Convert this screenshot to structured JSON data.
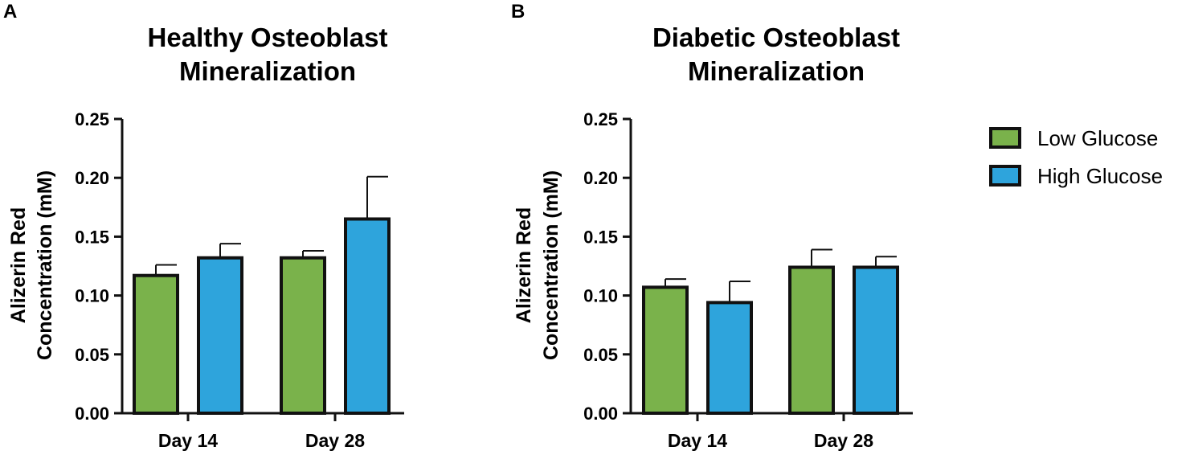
{
  "chart_data": [
    {
      "type": "bar",
      "panel": "A",
      "title": [
        "Healthy Osteoblast",
        "Mineralization"
      ],
      "ylabel": [
        "Alizerin Red",
        "Concentration (mM)"
      ],
      "xlabel": "",
      "categories": [
        "Day 14",
        "Day 28"
      ],
      "ylim": [
        0,
        0.25
      ],
      "yticks": [
        "0.00",
        "0.05",
        "0.10",
        "0.15",
        "0.20",
        "0.25"
      ],
      "series": [
        {
          "name": "Low Glucose",
          "values": [
            0.117,
            0.132
          ],
          "errors": [
            0.009,
            0.006
          ]
        },
        {
          "name": "High Glucose",
          "values": [
            0.132,
            0.165
          ],
          "errors": [
            0.012,
            0.036
          ]
        }
      ]
    },
    {
      "type": "bar",
      "panel": "B",
      "title": [
        "Diabetic Osteoblast",
        "Mineralization"
      ],
      "ylabel": [
        "Alizerin Red",
        "Concentration (mM)"
      ],
      "xlabel": "",
      "categories": [
        "Day 14",
        "Day 28"
      ],
      "ylim": [
        0,
        0.25
      ],
      "yticks": [
        "0.00",
        "0.05",
        "0.10",
        "0.15",
        "0.20",
        "0.25"
      ],
      "series": [
        {
          "name": "Low Glucose",
          "values": [
            0.107,
            0.124
          ],
          "errors": [
            0.007,
            0.015
          ]
        },
        {
          "name": "High Glucose",
          "values": [
            0.094,
            0.124
          ],
          "errors": [
            0.018,
            0.009
          ]
        }
      ]
    }
  ],
  "legend": {
    "items": [
      {
        "label": "Low Glucose",
        "color": "#7ab24b"
      },
      {
        "label": "High Glucose",
        "color": "#2ea4dc"
      }
    ]
  }
}
